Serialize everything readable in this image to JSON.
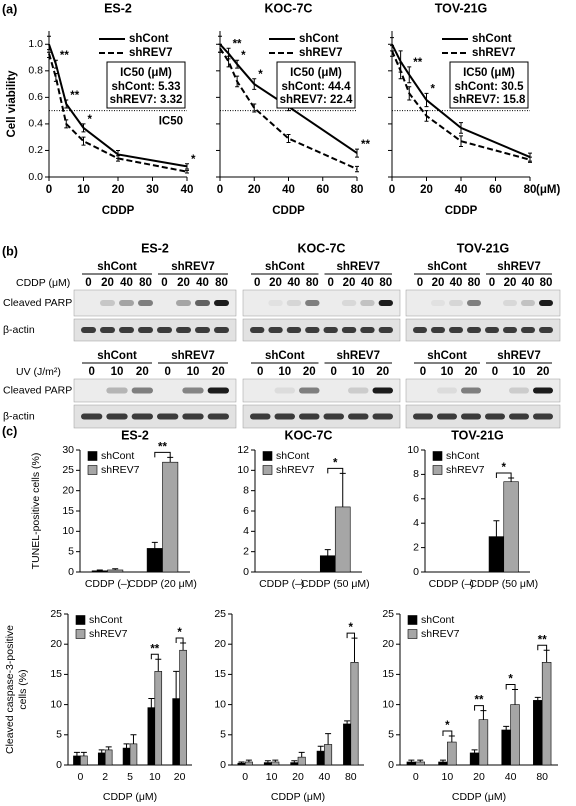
{
  "panel_labels": [
    "(a)",
    "(b)",
    "(c)"
  ],
  "chart_data": [
    {
      "type": "line",
      "title": "ES-2",
      "xlabel": "CDDP",
      "ylabel": "Cell viability",
      "x": [
        0,
        2,
        5,
        10,
        20,
        40
      ],
      "xlim": [
        0,
        40
      ],
      "xticks": [
        0,
        10,
        20,
        30,
        40
      ],
      "ylim": [
        0,
        1.1
      ],
      "yticks": [
        {
          "value": 0,
          "label": "0.0"
        },
        {
          "value": 0.2,
          "label": "0.2"
        },
        {
          "value": 0.4,
          "label": "0.4"
        },
        {
          "value": 0.6,
          "label": "0.6"
        },
        {
          "value": 0.8,
          "label": "0.8"
        },
        {
          "value": 1,
          "label": "1.0"
        }
      ],
      "series": [
        {
          "name": "shCont",
          "color": "#000000",
          "dash": "solid",
          "values": [
            1.0,
            0.85,
            0.55,
            0.37,
            0.17,
            0.08
          ],
          "errors": [
            0.06,
            0.03,
            0.03,
            0.03,
            0.03,
            0.02
          ]
        },
        {
          "name": "shREV7",
          "color": "#000000",
          "dash": "dashed",
          "values": [
            0.93,
            0.75,
            0.4,
            0.27,
            0.14,
            0.04
          ],
          "errors": [
            0.03,
            0.03,
            0.03,
            0.03,
            0.02,
            0.01
          ]
        }
      ],
      "significance": [
        null,
        "**",
        "**",
        "*",
        null,
        "*"
      ],
      "ic50_line": 0.5,
      "ic50_line_label": "IC50",
      "ic50_box": {
        "title": "IC50 (μM)",
        "entries": [
          "shCont: 5.33",
          "shREV7: 3.32"
        ]
      },
      "legend": "upper-right"
    },
    {
      "type": "line",
      "title": "KOC-7C",
      "xlabel": "CDDP",
      "x": [
        0,
        5,
        10,
        20,
        40,
        80
      ],
      "xlim": [
        0,
        80
      ],
      "xticks": [
        0,
        20,
        40,
        60,
        80
      ],
      "ylim": [
        0,
        1.1
      ],
      "yticks": [
        0,
        0.2,
        0.4,
        0.6,
        0.8,
        1
      ],
      "ytick_labels": false,
      "series": [
        {
          "name": "shCont",
          "color": "#000000",
          "dash": "solid",
          "values": [
            1.0,
            0.93,
            0.85,
            0.7,
            0.53,
            0.18
          ],
          "errors": [
            0.06,
            0.04,
            0.03,
            0.04,
            0.03,
            0.03
          ]
        },
        {
          "name": "shREV7",
          "color": "#000000",
          "dash": "dashed",
          "values": [
            0.97,
            0.87,
            0.72,
            0.52,
            0.29,
            0.06
          ],
          "errors": [
            0.03,
            0.04,
            0.04,
            0.03,
            0.03,
            0.02
          ]
        }
      ],
      "significance": [
        null,
        "**",
        "*",
        "*",
        "**",
        "**"
      ],
      "ic50_line": 0.5,
      "ic50_box": {
        "title": "IC50 (μM)",
        "entries": [
          "shCont: 44.4",
          "shREV7: 22.4"
        ]
      },
      "legend": "upper-right"
    },
    {
      "type": "line",
      "title": "TOV-21G",
      "xlabel": "CDDP",
      "x_unit": "(μM)",
      "x": [
        0,
        5,
        10,
        20,
        40,
        80
      ],
      "xlim": [
        0,
        80
      ],
      "xticks": [
        0,
        20,
        40,
        60,
        80
      ],
      "ylim": [
        0,
        1.1
      ],
      "yticks": [
        0,
        0.2,
        0.4,
        0.6,
        0.8,
        1
      ],
      "ytick_labels": false,
      "series": [
        {
          "name": "shCont",
          "color": "#000000",
          "dash": "solid",
          "values": [
            1.0,
            0.87,
            0.77,
            0.58,
            0.37,
            0.15
          ],
          "errors": [
            0.05,
            0.08,
            0.06,
            0.05,
            0.04,
            0.03
          ]
        },
        {
          "name": "shREV7",
          "color": "#000000",
          "dash": "dashed",
          "values": [
            0.95,
            0.8,
            0.63,
            0.46,
            0.27,
            0.13
          ],
          "errors": [
            0.04,
            0.06,
            0.05,
            0.04,
            0.04,
            0.02
          ]
        }
      ],
      "significance": [
        null,
        null,
        "**",
        "*",
        null,
        null
      ],
      "ic50_line": 0.5,
      "ic50_box": {
        "title": "IC50 (μM)",
        "entries": [
          "shCont: 30.5",
          "shREV7: 15.8"
        ]
      },
      "legend": "upper-right"
    },
    {
      "type": "bar",
      "title": "ES-2",
      "ylabel": "TUNEL-positive cells (%)",
      "categories": [
        "CDDP (–)",
        "CDDP (20 μM)"
      ],
      "ylim": [
        0,
        30
      ],
      "yticks": [
        0,
        5,
        10,
        15,
        20,
        25,
        30
      ],
      "series": [
        {
          "name": "shCont",
          "color": "#000000",
          "values": [
            0.3,
            5.8
          ],
          "errors": [
            0.2,
            1.5
          ]
        },
        {
          "name": "shREV7",
          "color": "#a6a6a6",
          "values": [
            0.5,
            27
          ],
          "errors": [
            0.3,
            1.2
          ]
        }
      ],
      "significance": [
        null,
        "**"
      ],
      "legend": "upper-left"
    },
    {
      "type": "bar",
      "title": "KOC-7C",
      "categories": [
        "CDDP (–)",
        "CDDP (50 μM)"
      ],
      "ylim": [
        0,
        12
      ],
      "yticks": [
        0,
        2,
        4,
        6,
        8,
        10,
        12
      ],
      "series": [
        {
          "name": "shCont",
          "color": "#000000",
          "values": [
            0,
            1.6
          ],
          "errors": [
            0,
            0.6
          ]
        },
        {
          "name": "shREV7",
          "color": "#a6a6a6",
          "values": [
            0,
            6.4
          ],
          "errors": [
            0,
            3.3
          ]
        }
      ],
      "significance": [
        null,
        "*"
      ],
      "legend": "upper-left"
    },
    {
      "type": "bar",
      "title": "TOV-21G",
      "categories": [
        "CDDP (–)",
        "CDDP (50 μM)"
      ],
      "ylim": [
        0,
        10
      ],
      "yticks": [
        0,
        2,
        4,
        6,
        8,
        10
      ],
      "series": [
        {
          "name": "shCont",
          "color": "#000000",
          "values": [
            0,
            2.9
          ],
          "errors": [
            0,
            1.3
          ]
        },
        {
          "name": "shREV7",
          "color": "#a6a6a6",
          "values": [
            0,
            7.4
          ],
          "errors": [
            0,
            0.3
          ]
        }
      ],
      "significance": [
        null,
        "*"
      ],
      "legend": "upper-left"
    },
    {
      "type": "bar",
      "ylabel": [
        "Cleaved caspase-3-positive",
        "cells (%)"
      ],
      "xlabel": "CDDP (μM)",
      "categories": [
        "0",
        "2",
        "5",
        "10",
        "20"
      ],
      "ylim": [
        0,
        25
      ],
      "yticks": [
        0,
        5,
        10,
        15,
        20,
        25
      ],
      "series": [
        {
          "name": "shCont",
          "color": "#000000",
          "values": [
            1.5,
            2.0,
            2.8,
            9.5,
            11
          ],
          "errors": [
            0.6,
            0.5,
            0.7,
            1.5,
            4.5
          ]
        },
        {
          "name": "shREV7",
          "color": "#a6a6a6",
          "values": [
            1.5,
            2.5,
            3.5,
            15.5,
            19
          ],
          "errors": [
            0.6,
            0.5,
            1.5,
            2,
            1.2
          ]
        }
      ],
      "significance": [
        null,
        null,
        null,
        "**",
        "*"
      ],
      "legend": "upper-left"
    },
    {
      "type": "bar",
      "xlabel": "CDDP (μM)",
      "categories": [
        "0",
        "10",
        "20",
        "40",
        "80"
      ],
      "ylim": [
        0,
        25
      ],
      "yticks": [
        0,
        5,
        10,
        15,
        20,
        25
      ],
      "series": [
        {
          "name": "shCont",
          "color": "#000000",
          "values": [
            0.3,
            0.4,
            0.4,
            2.3,
            6.8
          ],
          "errors": [
            0.2,
            0.3,
            0.3,
            0.8,
            0.5
          ]
        },
        {
          "name": "shREV7",
          "color": "#a6a6a6",
          "values": [
            0.5,
            0.5,
            1.3,
            3.4,
            17
          ],
          "errors": [
            0.3,
            0.3,
            0.8,
            1.8,
            4
          ]
        }
      ],
      "significance": [
        null,
        null,
        null,
        null,
        "*"
      ]
    },
    {
      "type": "bar",
      "xlabel": "CDDP (μM)",
      "categories": [
        "0",
        "10",
        "20",
        "40",
        "80"
      ],
      "ylim": [
        0,
        25
      ],
      "yticks": [
        0,
        5,
        10,
        15,
        20,
        25
      ],
      "series": [
        {
          "name": "shCont",
          "color": "#000000",
          "values": [
            0.5,
            0.5,
            2,
            5.8,
            10.7
          ],
          "errors": [
            0.3,
            0.3,
            0.5,
            0.6,
            0.5
          ]
        },
        {
          "name": "shREV7",
          "color": "#a6a6a6",
          "values": [
            0.5,
            3.8,
            7.5,
            10,
            17
          ],
          "errors": [
            0.3,
            1,
            1.5,
            2.5,
            2
          ]
        }
      ],
      "significance": [
        null,
        "*",
        "**",
        "*",
        "**"
      ],
      "legend": "upper-left"
    }
  ],
  "blots": {
    "cddp_label": "CDDP (μM)",
    "uv_label": "UV (J/m²)",
    "row_labels": [
      "Cleaved PARP",
      "β-actin"
    ],
    "groups": [
      "shCont",
      "shREV7"
    ],
    "cell_lines": [
      {
        "name": "ES-2",
        "cddp_lanes": [
          "0",
          "20",
          "40",
          "80"
        ],
        "uv_lanes": [
          "0",
          "10",
          "20"
        ]
      },
      {
        "name": "KOC-7C",
        "cddp_lanes": [
          "0",
          "20",
          "40",
          "80"
        ],
        "uv_lanes": [
          "0",
          "10",
          "20"
        ]
      },
      {
        "name": "TOV-21G",
        "cddp_lanes": [
          "0",
          "20",
          "40",
          "80"
        ],
        "uv_lanes": [
          "0",
          "10",
          "20"
        ]
      }
    ]
  }
}
